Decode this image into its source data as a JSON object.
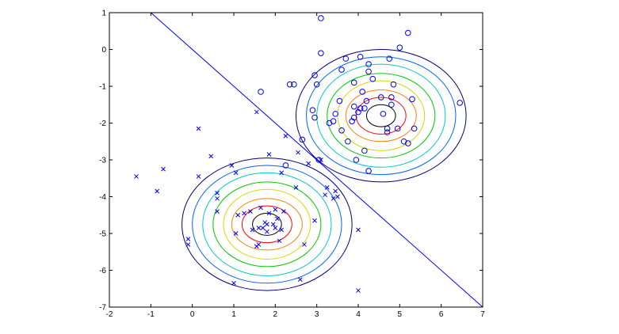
{
  "chart_data": {
    "type": "scatter",
    "title": "",
    "xlabel": "",
    "ylabel": "",
    "xlim": [
      -2,
      7
    ],
    "ylim": [
      -7,
      1
    ],
    "xticks": [
      -2,
      -1,
      0,
      1,
      2,
      3,
      4,
      5,
      6,
      7
    ],
    "yticks": [
      -7,
      -6,
      -5,
      -4,
      -3,
      -2,
      -1,
      0,
      1
    ],
    "xtick_labels": [
      "-2",
      "-1",
      "0",
      "1",
      "2",
      "3",
      "4",
      "5",
      "6",
      "7"
    ],
    "ytick_labels": [
      "-7",
      "-6",
      "-5",
      "-4",
      "-3",
      "-2",
      "-1",
      "0",
      "1"
    ],
    "grid": false,
    "legend": "none",
    "series": [
      {
        "marker": "x",
        "color": "#0000ff",
        "points": [
          [
            -1.35,
            -3.45
          ],
          [
            -0.85,
            -3.85
          ],
          [
            -0.7,
            -3.25
          ],
          [
            0.15,
            -2.15
          ],
          [
            -0.1,
            -5.15
          ],
          [
            -0.1,
            -5.3
          ],
          [
            0.15,
            -3.45
          ],
          [
            0.45,
            -2.9
          ],
          [
            0.6,
            -3.9
          ],
          [
            0.6,
            -4.05
          ],
          [
            0.6,
            -4.4
          ],
          [
            0.95,
            -3.15
          ],
          [
            1.05,
            -3.35
          ],
          [
            1.05,
            -5.0
          ],
          [
            1.1,
            -4.5
          ],
          [
            1.25,
            -4.45
          ],
          [
            1.4,
            -4.4
          ],
          [
            1.45,
            -4.9
          ],
          [
            1.55,
            -5.35
          ],
          [
            1.55,
            -1.7
          ],
          [
            1.6,
            -5.3
          ],
          [
            1.6,
            -4.85
          ],
          [
            1.65,
            -4.3
          ],
          [
            1.7,
            -4.85
          ],
          [
            1.75,
            -4.7
          ],
          [
            1.8,
            -4.75
          ],
          [
            1.8,
            -4.95
          ],
          [
            1.85,
            -4.45
          ],
          [
            1.85,
            -2.85
          ],
          [
            1.95,
            -4.75
          ],
          [
            2.0,
            -4.35
          ],
          [
            2.0,
            -4.85
          ],
          [
            2.05,
            -4.6
          ],
          [
            2.1,
            -5.2
          ],
          [
            2.15,
            -3.35
          ],
          [
            2.15,
            -4.9
          ],
          [
            2.2,
            -4.4
          ],
          [
            2.25,
            -2.35
          ],
          [
            2.5,
            -3.75
          ],
          [
            2.55,
            -2.8
          ],
          [
            2.6,
            -6.25
          ],
          [
            2.7,
            -5.3
          ],
          [
            2.8,
            -3.1
          ],
          [
            2.95,
            -4.65
          ],
          [
            3.1,
            -3.0
          ],
          [
            3.2,
            -3.95
          ],
          [
            3.25,
            -3.75
          ],
          [
            3.4,
            -4.05
          ],
          [
            3.45,
            -3.85
          ],
          [
            3.5,
            -4.0
          ],
          [
            4.0,
            -4.9
          ],
          [
            4.0,
            -6.55
          ],
          [
            1.0,
            -6.35
          ]
        ]
      },
      {
        "marker": "o",
        "color": "#0000ff",
        "points": [
          [
            1.65,
            -1.15
          ],
          [
            2.25,
            -3.15
          ],
          [
            2.35,
            -0.95
          ],
          [
            2.45,
            -0.95
          ],
          [
            2.65,
            -2.45
          ],
          [
            2.9,
            -1.65
          ],
          [
            2.95,
            -0.7
          ],
          [
            2.95,
            -1.85
          ],
          [
            3.0,
            -0.95
          ],
          [
            3.05,
            -3.0
          ],
          [
            3.1,
            -0.1
          ],
          [
            3.1,
            0.85
          ],
          [
            3.3,
            -2.0
          ],
          [
            3.4,
            -1.95
          ],
          [
            3.45,
            -1.75
          ],
          [
            3.55,
            -1.4
          ],
          [
            3.6,
            -0.55
          ],
          [
            3.6,
            -2.2
          ],
          [
            3.7,
            -0.25
          ],
          [
            3.75,
            -2.5
          ],
          [
            3.85,
            -1.95
          ],
          [
            3.9,
            -0.9
          ],
          [
            3.9,
            -1.55
          ],
          [
            3.9,
            -1.85
          ],
          [
            3.95,
            -3.0
          ],
          [
            4.0,
            -1.7
          ],
          [
            4.05,
            -1.6
          ],
          [
            4.05,
            -0.2
          ],
          [
            4.1,
            -1.15
          ],
          [
            4.15,
            -2.75
          ],
          [
            4.15,
            -1.6
          ],
          [
            4.2,
            -1.4
          ],
          [
            4.25,
            -0.6
          ],
          [
            4.25,
            -0.4
          ],
          [
            4.25,
            -3.3
          ],
          [
            4.35,
            -0.8
          ],
          [
            4.55,
            -1.3
          ],
          [
            4.6,
            -1.75
          ],
          [
            4.7,
            -2.25
          ],
          [
            4.7,
            -2.15
          ],
          [
            4.75,
            -0.25
          ],
          [
            4.8,
            -1.5
          ],
          [
            4.85,
            -0.95
          ],
          [
            4.95,
            -2.15
          ],
          [
            5.0,
            0.05
          ],
          [
            5.1,
            -2.5
          ],
          [
            5.2,
            0.45
          ],
          [
            5.2,
            -2.55
          ],
          [
            5.3,
            -1.35
          ],
          [
            5.35,
            -2.15
          ],
          [
            6.45,
            -1.45
          ],
          [
            4.8,
            -1.3
          ]
        ]
      }
    ],
    "decision_boundary": {
      "from": [
        -1.0,
        1.0
      ],
      "to": [
        7.0,
        -7.0
      ],
      "color": "#0000ff"
    },
    "contours": [
      {
        "center": [
          1.8,
          -4.75
        ],
        "radii": [
          [
            0.35,
            0.3
          ],
          [
            0.6,
            0.5
          ],
          [
            0.85,
            0.7
          ],
          [
            1.05,
            0.95
          ],
          [
            1.3,
            1.15
          ],
          [
            1.55,
            1.4
          ],
          [
            1.8,
            1.6
          ],
          [
            2.05,
            1.8
          ]
        ],
        "colors": [
          "#000000",
          "#ff0000",
          "#ff8000",
          "#d8d800",
          "#00c800",
          "#00c8c8",
          "#0064ff",
          "#00007f"
        ]
      },
      {
        "center": [
          4.55,
          -1.8
        ],
        "radii": [
          [
            0.35,
            0.3
          ],
          [
            0.6,
            0.5
          ],
          [
            0.85,
            0.7
          ],
          [
            1.05,
            0.95
          ],
          [
            1.3,
            1.15
          ],
          [
            1.55,
            1.4
          ],
          [
            1.8,
            1.6
          ],
          [
            2.05,
            1.8
          ]
        ],
        "colors": [
          "#000000",
          "#ff0000",
          "#ff8000",
          "#d8d800",
          "#00c800",
          "#00c8c8",
          "#0064ff",
          "#00007f"
        ]
      }
    ]
  }
}
